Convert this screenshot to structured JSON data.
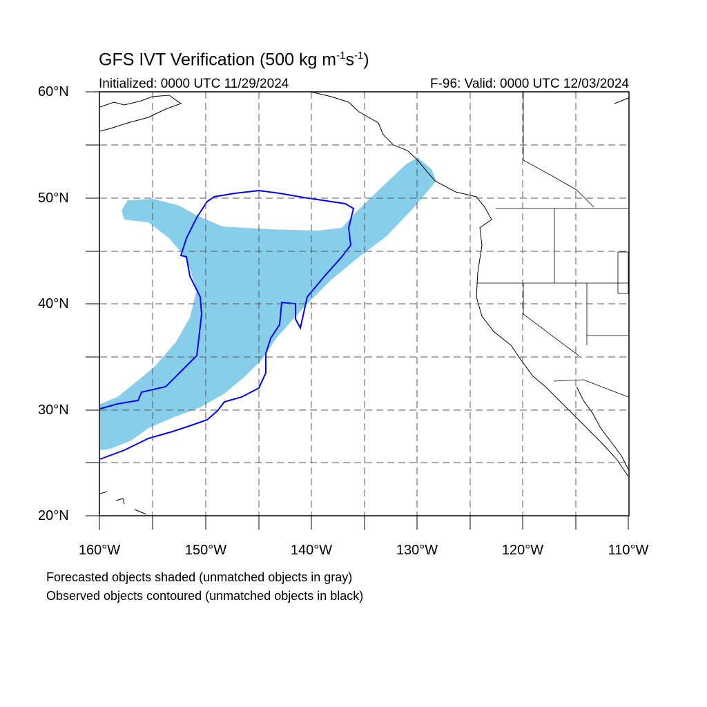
{
  "title": {
    "main": "GFS IVT Verification (500 kg m",
    "exp1": "-1",
    "mid": "s",
    "exp2": "-1",
    "end": ")"
  },
  "subtitle": {
    "initialized": "Initialized: 0000 UTC 11/29/2024",
    "valid": "F-96: Valid: 0000 UTC 12/03/2024"
  },
  "axes": {
    "lat_labels": [
      "60°N",
      "50°N",
      "40°N",
      "30°N",
      "20°N"
    ],
    "lon_labels": [
      "160°W",
      "150°W",
      "140°W",
      "130°W",
      "120°W",
      "110°W"
    ],
    "lat_range": [
      20,
      60
    ],
    "lon_range": [
      -160,
      -110
    ]
  },
  "legend": {
    "line1": "Forecasted objects shaded (unmatched objects in gray)",
    "line2": "Observed objects contoured (unmatched objects in black)"
  },
  "colors": {
    "forecast_fill": "#87ceeb",
    "observed_contour": "#0000ff",
    "coastline": "#000000",
    "grid": "#555555"
  }
}
